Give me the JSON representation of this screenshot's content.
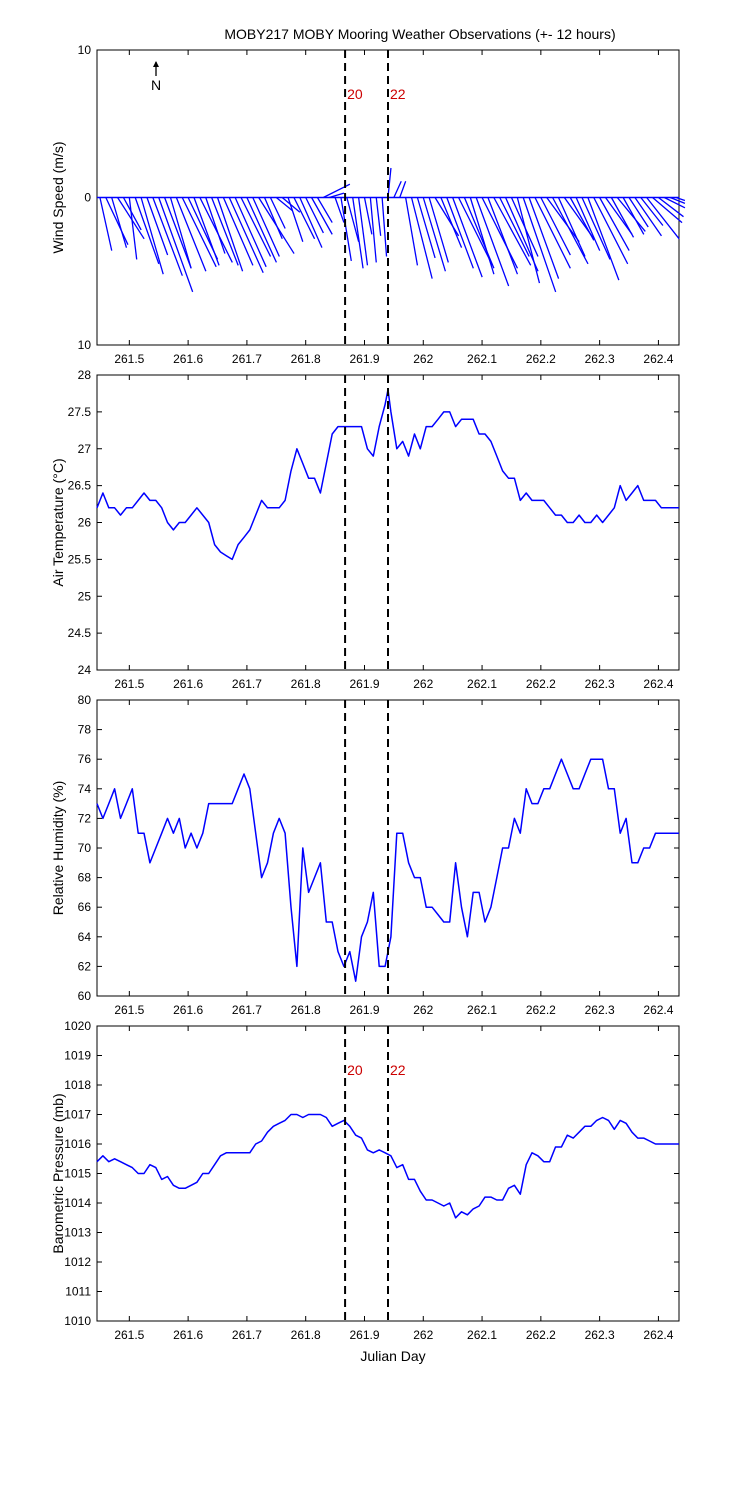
{
  "title": "MOBY217 MOBY Mooring Weather Observations (+- 12 hours)",
  "x_axis_label": "Julian Day",
  "x_tick_labels": [
    "261.5",
    "261.6",
    "261.7",
    "261.8",
    "261.9",
    "262",
    "262.1",
    "262.2",
    "262.3",
    "262.4"
  ],
  "marker_labels": [
    "20",
    "22"
  ],
  "north_label": "N",
  "colors": {
    "series": "#0000ff",
    "marker_text": "#cc0000",
    "axis": "#000000"
  },
  "chart_data": [
    {
      "type": "line",
      "subtype": "wind stick plot",
      "ylabel": "Wind Speed (m/s)",
      "ytick_labels": [
        "10",
        "0",
        "10"
      ],
      "ylim": [
        -10,
        10
      ],
      "xlim": [
        261.445,
        262.435
      ],
      "markers_x": [
        261.867,
        261.94
      ],
      "sticks": [
        {
          "x": 261.45,
          "u": 0.8,
          "v": -3.6
        },
        {
          "x": 261.46,
          "u": 1.5,
          "v": -3.2
        },
        {
          "x": 261.47,
          "u": 1.0,
          "v": -3.4
        },
        {
          "x": 261.48,
          "u": 1.8,
          "v": -2.8
        },
        {
          "x": 261.49,
          "u": 1.2,
          "v": -2.2
        },
        {
          "x": 261.5,
          "u": 0.5,
          "v": -4.2
        },
        {
          "x": 261.51,
          "u": 1.6,
          "v": -4.5
        },
        {
          "x": 261.52,
          "u": 1.5,
          "v": -5.2
        },
        {
          "x": 261.53,
          "u": 1.4,
          "v": -3.9
        },
        {
          "x": 261.54,
          "u": 2.0,
          "v": -5.3
        },
        {
          "x": 261.55,
          "u": 2.3,
          "v": -6.4
        },
        {
          "x": 261.56,
          "u": 1.8,
          "v": -4.8
        },
        {
          "x": 261.57,
          "u": 1.4,
          "v": -4.8
        },
        {
          "x": 261.58,
          "u": 2.0,
          "v": -5.0
        },
        {
          "x": 261.59,
          "u": 2.3,
          "v": -4.7
        },
        {
          "x": 261.6,
          "u": 2.0,
          "v": -4.2
        },
        {
          "x": 261.61,
          "u": 1.7,
          "v": -4.6
        },
        {
          "x": 261.62,
          "u": 2.2,
          "v": -4.4
        },
        {
          "x": 261.63,
          "u": 1.3,
          "v": -3.8
        },
        {
          "x": 261.64,
          "u": 1.8,
          "v": -4.6
        },
        {
          "x": 261.65,
          "u": 1.7,
          "v": -5.0
        },
        {
          "x": 261.66,
          "u": 2.0,
          "v": -4.6
        },
        {
          "x": 261.67,
          "u": 2.3,
          "v": -5.1
        },
        {
          "x": 261.68,
          "u": 2.1,
          "v": -4.7
        },
        {
          "x": 261.69,
          "u": 2.0,
          "v": -4.0
        },
        {
          "x": 261.7,
          "u": 2.0,
          "v": -4.4
        },
        {
          "x": 261.71,
          "u": 1.8,
          "v": -4.0
        },
        {
          "x": 261.72,
          "u": 2.4,
          "v": -3.8
        },
        {
          "x": 261.73,
          "u": 1.2,
          "v": -2.8
        },
        {
          "x": 261.74,
          "u": 1.0,
          "v": -2.1
        },
        {
          "x": 261.75,
          "u": 1.1,
          "v": -0.9
        },
        {
          "x": 261.76,
          "u": 1.2,
          "v": -1.0
        },
        {
          "x": 261.77,
          "u": 1.0,
          "v": -3.0
        },
        {
          "x": 261.78,
          "u": 1.4,
          "v": -2.8
        },
        {
          "x": 261.79,
          "u": 1.5,
          "v": -3.4
        },
        {
          "x": 261.8,
          "u": 1.2,
          "v": -2.4
        },
        {
          "x": 261.81,
          "u": 1.4,
          "v": -2.5
        },
        {
          "x": 261.82,
          "u": 1.0,
          "v": -1.7
        },
        {
          "x": 261.83,
          "u": 1.8,
          "v": 0.9
        },
        {
          "x": 261.84,
          "u": 1.0,
          "v": 0.3
        },
        {
          "x": 261.85,
          "u": 0.6,
          "v": -1.7
        },
        {
          "x": 261.86,
          "u": 0.7,
          "v": -4.3
        },
        {
          "x": 261.87,
          "u": 0.8,
          "v": -3.0
        },
        {
          "x": 261.88,
          "u": 0.7,
          "v": -4.8
        },
        {
          "x": 261.89,
          "u": 0.6,
          "v": -4.6
        },
        {
          "x": 261.9,
          "u": 0.5,
          "v": -2.5
        },
        {
          "x": 261.91,
          "u": 0.4,
          "v": -4.4
        },
        {
          "x": 261.92,
          "u": 0.3,
          "v": -2.6
        },
        {
          "x": 261.93,
          "u": 0.3,
          "v": -4.0
        },
        {
          "x": 261.94,
          "u": 0.2,
          "v": 2.0
        },
        {
          "x": 261.95,
          "u": 0.5,
          "v": 1.1
        },
        {
          "x": 261.96,
          "u": 0.4,
          "v": 1.1
        },
        {
          "x": 261.97,
          "u": 0.8,
          "v": -4.6
        },
        {
          "x": 261.98,
          "u": 1.4,
          "v": -5.5
        },
        {
          "x": 261.99,
          "u": 1.2,
          "v": -4.1
        },
        {
          "x": 262.0,
          "u": 1.5,
          "v": -5.0
        },
        {
          "x": 262.01,
          "u": 1.3,
          "v": -4.4
        },
        {
          "x": 262.02,
          "u": 1.6,
          "v": -2.6
        },
        {
          "x": 262.03,
          "u": 1.4,
          "v": -3.4
        },
        {
          "x": 262.04,
          "u": 1.8,
          "v": -4.8
        },
        {
          "x": 262.05,
          "u": 2.0,
          "v": -5.4
        },
        {
          "x": 262.06,
          "u": 2.3,
          "v": -4.6
        },
        {
          "x": 262.07,
          "u": 2.0,
          "v": -4.8
        },
        {
          "x": 262.08,
          "u": 1.6,
          "v": -5.2
        },
        {
          "x": 262.09,
          "u": 2.2,
          "v": -6.0
        },
        {
          "x": 262.1,
          "u": 2.4,
          "v": -4.8
        },
        {
          "x": 262.11,
          "u": 2.0,
          "v": -5.2
        },
        {
          "x": 262.12,
          "u": 2.5,
          "v": -4.6
        },
        {
          "x": 262.13,
          "u": 2.0,
          "v": -4.0
        },
        {
          "x": 262.14,
          "u": 2.2,
          "v": -5.0
        },
        {
          "x": 262.15,
          "u": 1.8,
          "v": -4.0
        },
        {
          "x": 262.16,
          "u": 1.5,
          "v": -5.8
        },
        {
          "x": 262.17,
          "u": 2.2,
          "v": -6.4
        },
        {
          "x": 262.18,
          "u": 2.0,
          "v": -5.5
        },
        {
          "x": 262.19,
          "u": 2.4,
          "v": -4.8
        },
        {
          "x": 262.2,
          "u": 2.0,
          "v": -3.9
        },
        {
          "x": 262.21,
          "u": 2.2,
          "v": -3.0
        },
        {
          "x": 262.22,
          "u": 2.4,
          "v": -4.5
        },
        {
          "x": 262.23,
          "u": 1.8,
          "v": -4.0
        },
        {
          "x": 262.24,
          "u": 2.0,
          "v": -2.8
        },
        {
          "x": 262.25,
          "u": 1.6,
          "v": -2.9
        },
        {
          "x": 262.26,
          "u": 1.6,
          "v": -3.6
        },
        {
          "x": 262.27,
          "u": 1.9,
          "v": -4.2
        },
        {
          "x": 262.28,
          "u": 2.1,
          "v": -5.6
        },
        {
          "x": 262.29,
          "u": 2.3,
          "v": -4.5
        },
        {
          "x": 262.3,
          "u": 2.0,
          "v": -3.6
        },
        {
          "x": 262.31,
          "u": 1.8,
          "v": -2.5
        },
        {
          "x": 262.32,
          "u": 1.5,
          "v": -2.7
        },
        {
          "x": 262.33,
          "u": 1.9,
          "v": -2.3
        },
        {
          "x": 262.34,
          "u": 1.4,
          "v": -2.5
        },
        {
          "x": 262.35,
          "u": 1.3,
          "v": -2.0
        },
        {
          "x": 262.36,
          "u": 1.8,
          "v": -2.6
        },
        {
          "x": 262.37,
          "u": 1.5,
          "v": -1.9
        },
        {
          "x": 262.38,
          "u": 2.2,
          "v": -2.8
        },
        {
          "x": 262.39,
          "u": 2.0,
          "v": -1.7
        },
        {
          "x": 262.4,
          "u": 1.7,
          "v": -1.3
        },
        {
          "x": 262.41,
          "u": 1.4,
          "v": -0.7
        },
        {
          "x": 262.42,
          "u": 1.0,
          "v": -0.4
        },
        {
          "x": 262.43,
          "u": 0.6,
          "v": -0.2
        }
      ]
    },
    {
      "type": "line",
      "ylabel": "Air Temperature (°C)",
      "ytick_labels": [
        "28",
        "27.5",
        "27",
        "26.5",
        "26",
        "25.5",
        "25",
        "24.5",
        "24"
      ],
      "ylim": [
        24,
        28
      ],
      "xlim": [
        261.445,
        262.435
      ],
      "markers_x": [
        261.867,
        261.94
      ],
      "x": [
        261.445,
        261.455,
        261.465,
        261.475,
        261.485,
        261.495,
        261.505,
        261.515,
        261.525,
        261.535,
        261.545,
        261.555,
        261.565,
        261.575,
        261.585,
        261.595,
        261.605,
        261.615,
        261.625,
        261.635,
        261.645,
        261.655,
        261.665,
        261.675,
        261.685,
        261.695,
        261.705,
        261.715,
        261.725,
        261.735,
        261.745,
        261.755,
        261.765,
        261.775,
        261.785,
        261.795,
        261.805,
        261.815,
        261.825,
        261.835,
        261.845,
        261.855,
        261.865,
        261.875,
        261.885,
        261.895,
        261.905,
        261.915,
        261.925,
        261.935,
        261.94,
        261.945,
        261.955,
        261.965,
        261.975,
        261.985,
        261.995,
        262.005,
        262.015,
        262.025,
        262.035,
        262.045,
        262.055,
        262.065,
        262.075,
        262.085,
        262.095,
        262.105,
        262.115,
        262.125,
        262.135,
        262.145,
        262.155,
        262.165,
        262.175,
        262.185,
        262.195,
        262.205,
        262.215,
        262.225,
        262.235,
        262.245,
        262.255,
        262.265,
        262.275,
        262.285,
        262.295,
        262.305,
        262.315,
        262.325,
        262.335,
        262.345,
        262.355,
        262.365,
        262.375,
        262.385,
        262.395,
        262.405,
        262.415,
        262.425,
        262.435
      ],
      "values": [
        26.2,
        26.4,
        26.2,
        26.2,
        26.1,
        26.2,
        26.2,
        26.3,
        26.4,
        26.3,
        26.3,
        26.2,
        26.0,
        25.9,
        26.0,
        26.0,
        26.1,
        26.2,
        26.1,
        26.0,
        25.7,
        25.6,
        25.55,
        25.5,
        25.7,
        25.8,
        25.9,
        26.1,
        26.3,
        26.2,
        26.2,
        26.2,
        26.3,
        26.7,
        27.0,
        26.8,
        26.6,
        26.6,
        26.4,
        26.8,
        27.2,
        27.3,
        27.3,
        27.3,
        27.3,
        27.3,
        27.0,
        26.9,
        27.3,
        27.6,
        27.8,
        27.5,
        27.0,
        27.1,
        26.9,
        27.2,
        27.0,
        27.3,
        27.3,
        27.4,
        27.5,
        27.5,
        27.3,
        27.4,
        27.4,
        27.4,
        27.2,
        27.2,
        27.1,
        26.9,
        26.7,
        26.6,
        26.6,
        26.3,
        26.4,
        26.3,
        26.3,
        26.3,
        26.2,
        26.1,
        26.1,
        26.0,
        26.0,
        26.1,
        26.0,
        26.0,
        26.1,
        26.0,
        26.1,
        26.2,
        26.5,
        26.3,
        26.4,
        26.5,
        26.3,
        26.3,
        26.3,
        26.2,
        26.2,
        26.2,
        26.2
      ]
    },
    {
      "type": "line",
      "ylabel": "Relative Humidity (%)",
      "ytick_labels": [
        "80",
        "78",
        "76",
        "74",
        "72",
        "70",
        "68",
        "66",
        "64",
        "62",
        "60"
      ],
      "ylim": [
        60,
        80
      ],
      "xlim": [
        261.445,
        262.435
      ],
      "markers_x": [
        261.867,
        261.94
      ],
      "x": [
        261.445,
        261.455,
        261.465,
        261.475,
        261.485,
        261.495,
        261.505,
        261.515,
        261.525,
        261.535,
        261.545,
        261.555,
        261.565,
        261.575,
        261.585,
        261.595,
        261.605,
        261.615,
        261.625,
        261.635,
        261.645,
        261.655,
        261.665,
        261.675,
        261.685,
        261.695,
        261.705,
        261.715,
        261.725,
        261.735,
        261.745,
        261.755,
        261.765,
        261.775,
        261.785,
        261.795,
        261.805,
        261.815,
        261.825,
        261.835,
        261.845,
        261.855,
        261.865,
        261.875,
        261.885,
        261.895,
        261.905,
        261.915,
        261.925,
        261.935,
        261.945,
        261.955,
        261.965,
        261.975,
        261.985,
        261.995,
        262.005,
        262.015,
        262.025,
        262.035,
        262.045,
        262.055,
        262.065,
        262.075,
        262.085,
        262.095,
        262.105,
        262.115,
        262.125,
        262.135,
        262.145,
        262.155,
        262.165,
        262.175,
        262.185,
        262.195,
        262.205,
        262.215,
        262.225,
        262.235,
        262.245,
        262.255,
        262.265,
        262.275,
        262.285,
        262.295,
        262.305,
        262.315,
        262.325,
        262.335,
        262.345,
        262.355,
        262.365,
        262.375,
        262.385,
        262.395,
        262.405,
        262.415,
        262.425,
        262.435
      ],
      "values": [
        73,
        72,
        73,
        74,
        72,
        73,
        74,
        71,
        71,
        69,
        70,
        71,
        72,
        71,
        72,
        70,
        71,
        70,
        71,
        73,
        73,
        73,
        73,
        73,
        74,
        75,
        74,
        71,
        68,
        69,
        71,
        72,
        71,
        66,
        62,
        70,
        67,
        68,
        69,
        65,
        65,
        63,
        62,
        63,
        61,
        64,
        65,
        67,
        62,
        62,
        64,
        71,
        71,
        69,
        68,
        68,
        66,
        66,
        65.5,
        65,
        65,
        69,
        66,
        64,
        67,
        67,
        65,
        66,
        68,
        70,
        70,
        72,
        71,
        74,
        73,
        73,
        74,
        74,
        75,
        76,
        75,
        74,
        74,
        75,
        76,
        76,
        76,
        74,
        74,
        71,
        72,
        69,
        69,
        70,
        70,
        71,
        71,
        71,
        71,
        71
      ]
    },
    {
      "type": "line",
      "ylabel": "Barometric Pressure (mb)",
      "xlabel": "Julian Day",
      "ytick_labels": [
        "1020",
        "1019",
        "1018",
        "1017",
        "1016",
        "1015",
        "1014",
        "1013",
        "1012",
        "1011",
        "1010"
      ],
      "ylim": [
        1010,
        1020
      ],
      "xlim": [
        261.445,
        262.435
      ],
      "markers_x": [
        261.867,
        261.94
      ],
      "x": [
        261.445,
        261.455,
        261.465,
        261.475,
        261.485,
        261.495,
        261.505,
        261.515,
        261.525,
        261.535,
        261.545,
        261.555,
        261.565,
        261.575,
        261.585,
        261.595,
        261.605,
        261.615,
        261.625,
        261.635,
        261.645,
        261.655,
        261.665,
        261.675,
        261.685,
        261.695,
        261.705,
        261.715,
        261.725,
        261.735,
        261.745,
        261.755,
        261.765,
        261.775,
        261.785,
        261.795,
        261.805,
        261.815,
        261.825,
        261.835,
        261.845,
        261.855,
        261.865,
        261.875,
        261.885,
        261.895,
        261.905,
        261.915,
        261.925,
        261.935,
        261.945,
        261.955,
        261.965,
        261.975,
        261.985,
        261.995,
        262.005,
        262.015,
        262.025,
        262.035,
        262.045,
        262.055,
        262.065,
        262.075,
        262.085,
        262.095,
        262.105,
        262.115,
        262.125,
        262.135,
        262.145,
        262.155,
        262.165,
        262.175,
        262.185,
        262.195,
        262.205,
        262.215,
        262.225,
        262.235,
        262.245,
        262.255,
        262.265,
        262.275,
        262.285,
        262.295,
        262.305,
        262.315,
        262.325,
        262.335,
        262.345,
        262.355,
        262.365,
        262.375,
        262.385,
        262.395,
        262.405,
        262.415,
        262.425,
        262.435
      ],
      "values": [
        1015.4,
        1015.6,
        1015.4,
        1015.5,
        1015.4,
        1015.3,
        1015.2,
        1015.0,
        1015.0,
        1015.3,
        1015.2,
        1014.8,
        1014.9,
        1014.6,
        1014.5,
        1014.5,
        1014.6,
        1014.7,
        1015.0,
        1015.0,
        1015.3,
        1015.6,
        1015.7,
        1015.7,
        1015.7,
        1015.7,
        1015.7,
        1016.0,
        1016.1,
        1016.4,
        1016.6,
        1016.7,
        1016.8,
        1017.0,
        1017.0,
        1016.9,
        1017.0,
        1017.0,
        1017.0,
        1016.9,
        1016.6,
        1016.7,
        1016.8,
        1016.6,
        1016.3,
        1016.2,
        1015.8,
        1015.7,
        1015.8,
        1015.7,
        1015.6,
        1015.2,
        1015.3,
        1014.8,
        1014.8,
        1014.4,
        1014.1,
        1014.1,
        1014.0,
        1013.9,
        1014.0,
        1013.5,
        1013.7,
        1013.6,
        1013.8,
        1013.9,
        1014.2,
        1014.2,
        1014.1,
        1014.1,
        1014.5,
        1014.6,
        1014.3,
        1015.3,
        1015.7,
        1015.6,
        1015.4,
        1015.4,
        1015.9,
        1015.9,
        1016.3,
        1016.2,
        1016.4,
        1016.6,
        1016.6,
        1016.8,
        1016.9,
        1016.8,
        1016.5,
        1016.8,
        1016.7,
        1016.4,
        1016.2,
        1016.2,
        1016.1,
        1016.0,
        1016.0,
        1016.0,
        1016.0,
        1016.0
      ]
    }
  ]
}
